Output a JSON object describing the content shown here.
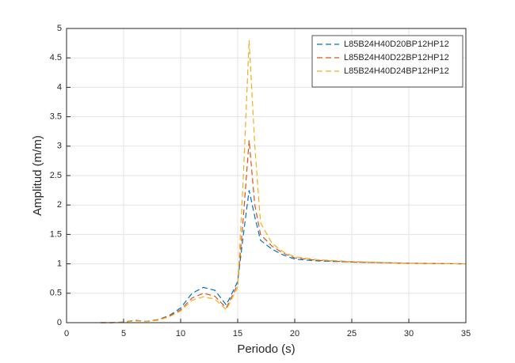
{
  "chart_data": {
    "type": "line",
    "xlabel": "Periodo (s)",
    "ylabel": "Amplitud (m/m)",
    "x": [
      3,
      4,
      5,
      6,
      7,
      8,
      9,
      10,
      11,
      12,
      13,
      14,
      15,
      15.5,
      16,
      16.5,
      17,
      18,
      19,
      20,
      22,
      25,
      30,
      35
    ],
    "series": [
      {
        "name": "L85B24H40D20BP12HP12",
        "color": "#0072bd",
        "values": [
          0,
          0,
          0.01,
          0.04,
          0.02,
          0.05,
          0.12,
          0.25,
          0.5,
          0.6,
          0.55,
          0.3,
          0.7,
          1.5,
          2.25,
          1.8,
          1.4,
          1.25,
          1.15,
          1.08,
          1.05,
          1.03,
          1.01,
          1.0
        ]
      },
      {
        "name": "L85B24H40D22BP12HP12",
        "color": "#d95319",
        "values": [
          0,
          0,
          0.01,
          0.04,
          0.02,
          0.05,
          0.11,
          0.22,
          0.42,
          0.5,
          0.45,
          0.25,
          0.65,
          1.8,
          3.1,
          2.0,
          1.5,
          1.3,
          1.18,
          1.1,
          1.06,
          1.03,
          1.01,
          1.0
        ]
      },
      {
        "name": "L85B24H40D24BP12HP12",
        "color": "#edb120",
        "values": [
          0,
          0,
          0.01,
          0.03,
          0.02,
          0.04,
          0.1,
          0.2,
          0.38,
          0.44,
          0.4,
          0.22,
          0.6,
          2.5,
          4.8,
          3.0,
          1.7,
          1.35,
          1.2,
          1.12,
          1.07,
          1.04,
          1.01,
          1.0
        ]
      }
    ],
    "xlim": [
      0,
      35
    ],
    "xticks": [
      0,
      5,
      10,
      15,
      20,
      25,
      30,
      35
    ],
    "ylim": [
      0,
      5
    ],
    "yticks": [
      0,
      0.5,
      1,
      1.5,
      2,
      2.5,
      3,
      3.5,
      4,
      4.5,
      5
    ],
    "grid": true,
    "legend": "northeast"
  }
}
